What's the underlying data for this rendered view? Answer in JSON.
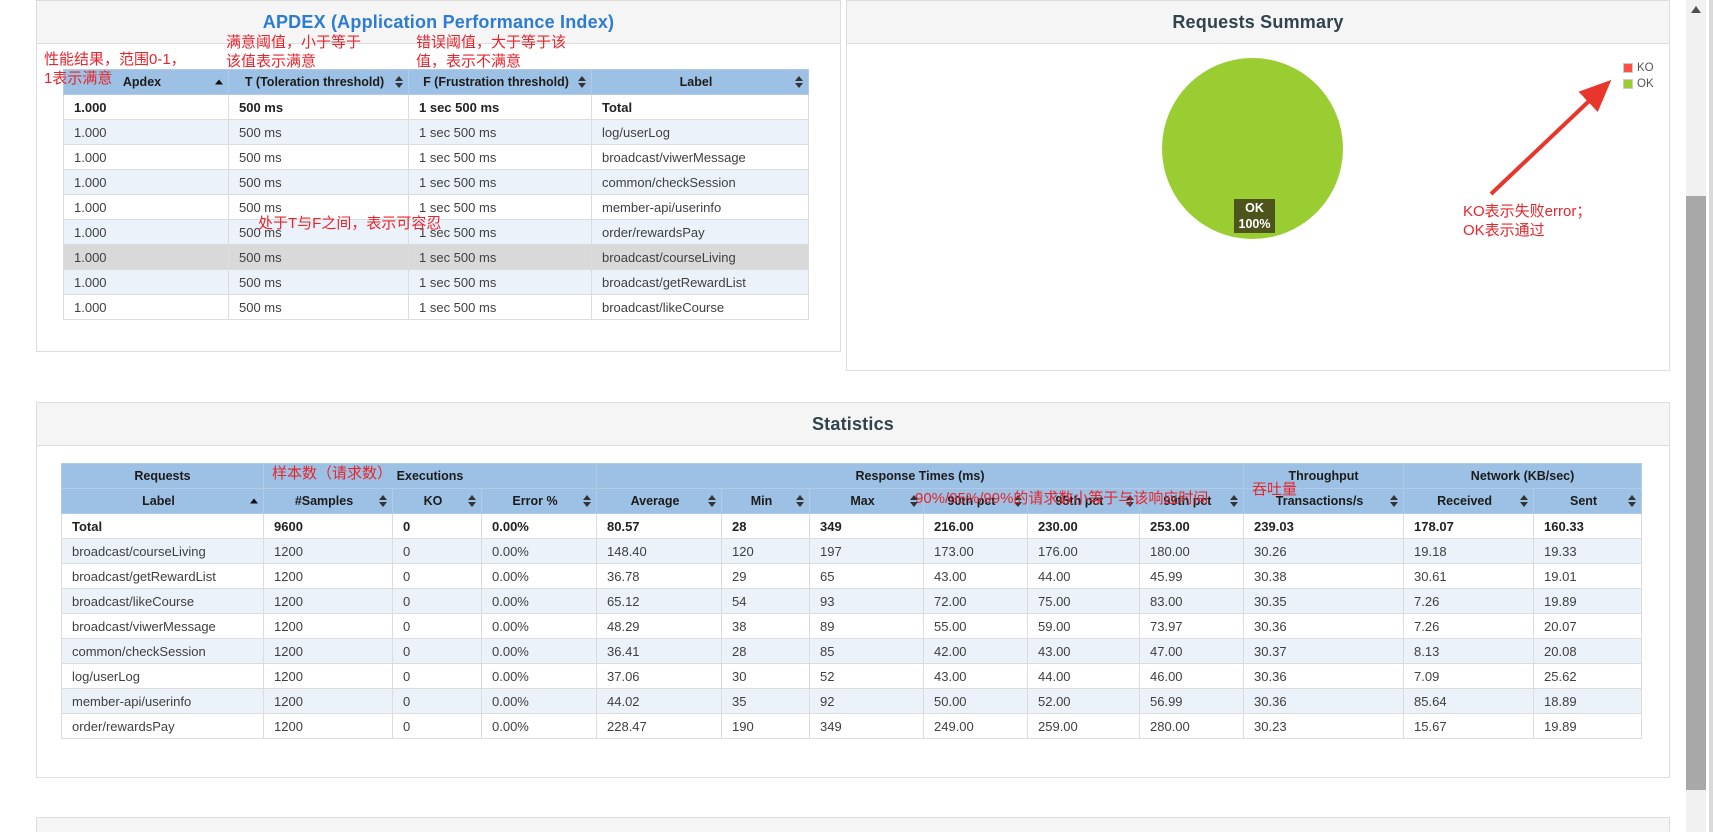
{
  "colors": {
    "ok_green": "#9acd32",
    "ko_red": "#fa5341",
    "pie_label_bg": "#4d551c",
    "annotation_red": "#e5262d",
    "table_header_blue": "#9dc1e4",
    "apdex_title_blue": "#2c7bd4",
    "section_title": "#31444d"
  },
  "apdex_panel": {
    "title": "APDEX (Application Performance Index)",
    "table": {
      "columns": [
        {
          "label": "Apdex",
          "sort": "asc"
        },
        {
          "label": "T (Toleration threshold)",
          "sort": "both"
        },
        {
          "label": "F (Frustration threshold)",
          "sort": "both"
        },
        {
          "label": "Label",
          "sort": "both"
        }
      ],
      "rows": [
        {
          "variant": "total",
          "cells": [
            "1.000",
            "500 ms",
            "1 sec 500 ms",
            "Total"
          ]
        },
        {
          "variant": "stripe",
          "cells": [
            "1.000",
            "500 ms",
            "1 sec 500 ms",
            "log/userLog"
          ]
        },
        {
          "variant": "plain",
          "cells": [
            "1.000",
            "500 ms",
            "1 sec 500 ms",
            "broadcast/viwerMessage"
          ]
        },
        {
          "variant": "stripe",
          "cells": [
            "1.000",
            "500 ms",
            "1 sec 500 ms",
            "common/checkSession"
          ]
        },
        {
          "variant": "plain",
          "cells": [
            "1.000",
            "500 ms",
            "1 sec 500 ms",
            "member-api/userinfo"
          ]
        },
        {
          "variant": "stripe",
          "cells": [
            "1.000",
            "500 ms",
            "1 sec 500 ms",
            "order/rewardsPay"
          ]
        },
        {
          "variant": "hover",
          "cells": [
            "1.000",
            "500 ms",
            "1 sec 500 ms",
            "broadcast/courseLiving"
          ]
        },
        {
          "variant": "stripe",
          "cells": [
            "1.000",
            "500 ms",
            "1 sec 500 ms",
            "broadcast/getRewardList"
          ]
        },
        {
          "variant": "plain",
          "cells": [
            "1.000",
            "500 ms",
            "1 sec 500 ms",
            "broadcast/likeCourse"
          ]
        }
      ]
    }
  },
  "requests_summary": {
    "title": "Requests Summary",
    "legend": [
      {
        "label": "KO",
        "color": "#fa5341"
      },
      {
        "label": "OK",
        "color": "#9acd32"
      }
    ],
    "pie_label": {
      "line1": "OK",
      "line2": "100%"
    },
    "chart_data": {
      "type": "pie",
      "title": "Requests Summary",
      "labels": [
        "KO",
        "OK"
      ],
      "values": [
        0,
        100
      ],
      "colors": [
        "#fa5341",
        "#9acd32"
      ],
      "unit": "%",
      "data_label": "OK 100%",
      "legend_position": "top-right"
    }
  },
  "statistics": {
    "title": "Statistics",
    "table": {
      "groups": [
        {
          "label": "Requests",
          "span": 1
        },
        {
          "label": "Executions",
          "span": 3
        },
        {
          "label": "Response Times (ms)",
          "span": 6
        },
        {
          "label": "Throughput",
          "span": 1
        },
        {
          "label": "Network (KB/sec)",
          "span": 2
        }
      ],
      "columns": [
        {
          "label": "Label",
          "sort": "asc"
        },
        {
          "label": "#Samples",
          "sort": "both"
        },
        {
          "label": "KO",
          "sort": "both"
        },
        {
          "label": "Error %",
          "sort": "both"
        },
        {
          "label": "Average",
          "sort": "both"
        },
        {
          "label": "Min",
          "sort": "both"
        },
        {
          "label": "Max",
          "sort": "both"
        },
        {
          "label": "90th pct",
          "sort": "both"
        },
        {
          "label": "95th pct",
          "sort": "both"
        },
        {
          "label": "99th pct",
          "sort": "both"
        },
        {
          "label": "Transactions/s",
          "sort": "both"
        },
        {
          "label": "Received",
          "sort": "both"
        },
        {
          "label": "Sent",
          "sort": "both"
        }
      ],
      "rows": [
        {
          "variant": "total",
          "cells": [
            "Total",
            "9600",
            "0",
            "0.00%",
            "80.57",
            "28",
            "349",
            "216.00",
            "230.00",
            "253.00",
            "239.03",
            "178.07",
            "160.33"
          ]
        },
        {
          "variant": "stripe",
          "cells": [
            "broadcast/courseLiving",
            "1200",
            "0",
            "0.00%",
            "148.40",
            "120",
            "197",
            "173.00",
            "176.00",
            "180.00",
            "30.26",
            "19.18",
            "19.33"
          ]
        },
        {
          "variant": "plain",
          "cells": [
            "broadcast/getRewardList",
            "1200",
            "0",
            "0.00%",
            "36.78",
            "29",
            "65",
            "43.00",
            "44.00",
            "45.99",
            "30.38",
            "30.61",
            "19.01"
          ]
        },
        {
          "variant": "stripe",
          "cells": [
            "broadcast/likeCourse",
            "1200",
            "0",
            "0.00%",
            "65.12",
            "54",
            "93",
            "72.00",
            "75.00",
            "83.00",
            "30.35",
            "7.26",
            "19.89"
          ]
        },
        {
          "variant": "plain",
          "cells": [
            "broadcast/viwerMessage",
            "1200",
            "0",
            "0.00%",
            "48.29",
            "38",
            "89",
            "55.00",
            "59.00",
            "73.97",
            "30.36",
            "7.26",
            "20.07"
          ]
        },
        {
          "variant": "stripe",
          "cells": [
            "common/checkSession",
            "1200",
            "0",
            "0.00%",
            "36.41",
            "28",
            "85",
            "42.00",
            "43.00",
            "47.00",
            "30.37",
            "8.13",
            "20.08"
          ]
        },
        {
          "variant": "plain",
          "cells": [
            "log/userLog",
            "1200",
            "0",
            "0.00%",
            "37.06",
            "30",
            "52",
            "43.00",
            "44.00",
            "46.00",
            "30.36",
            "7.09",
            "25.62"
          ]
        },
        {
          "variant": "stripe",
          "cells": [
            "member-api/userinfo",
            "1200",
            "0",
            "0.00%",
            "44.02",
            "35",
            "92",
            "50.00",
            "52.00",
            "56.99",
            "30.36",
            "85.64",
            "18.89"
          ]
        },
        {
          "variant": "plain",
          "cells": [
            "order/rewardsPay",
            "1200",
            "0",
            "0.00%",
            "228.47",
            "190",
            "349",
            "249.00",
            "259.00",
            "280.00",
            "30.23",
            "15.67",
            "19.89"
          ]
        }
      ]
    }
  },
  "annotations": {
    "apdex_result": {
      "line1": "性能结果，范围0-1，",
      "line2": "1表示满意"
    },
    "toleration": {
      "line1": "满意阈值，小于等于",
      "line2": "该值表示满意"
    },
    "frustration": {
      "line1": "错误阈值，大于等于该",
      "line2": "值，表示不满意"
    },
    "tolerable": "处于T与F之间，表示可容忍",
    "samples": "样本数（请求数）",
    "percentiles": "90%/95%/99%的请求数小等于与该响应时间",
    "throughput": "吞吐量",
    "ko_ok": {
      "line1": "KO表示失败error；",
      "line2": "OK表示通过"
    }
  }
}
